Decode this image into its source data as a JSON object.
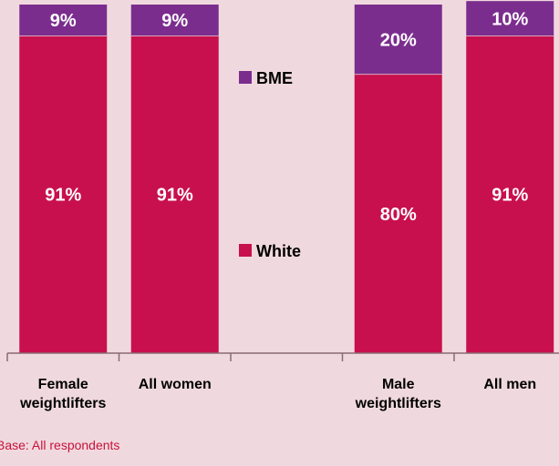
{
  "chart_data": {
    "type": "bar",
    "stacked": true,
    "orientation": "vertical",
    "categories": [
      "Female\nweightlifters",
      "All women",
      "",
      "Male\nweightlifters",
      "All men"
    ],
    "series": [
      {
        "name": "White",
        "values": [
          91,
          91,
          null,
          80,
          91
        ],
        "labels": [
          "91%",
          "91%",
          "",
          "80%",
          "91%"
        ],
        "color": "#c8104e"
      },
      {
        "name": "BME",
        "values": [
          9,
          9,
          null,
          20,
          10
        ],
        "labels": [
          "9%",
          "9%",
          "",
          "20%",
          "10%"
        ],
        "color": "#7b2d8e"
      }
    ],
    "ylim": [
      0,
      100
    ],
    "grid": false,
    "legend_placement": "center",
    "value_unit": "%"
  },
  "footnote": "Base: All respondents",
  "colors": {
    "background": "#f0d9de",
    "axis": "#8a6a72",
    "label_text": "#ffffff",
    "category_text": "#000000",
    "footnote_text": "#c8123c"
  }
}
